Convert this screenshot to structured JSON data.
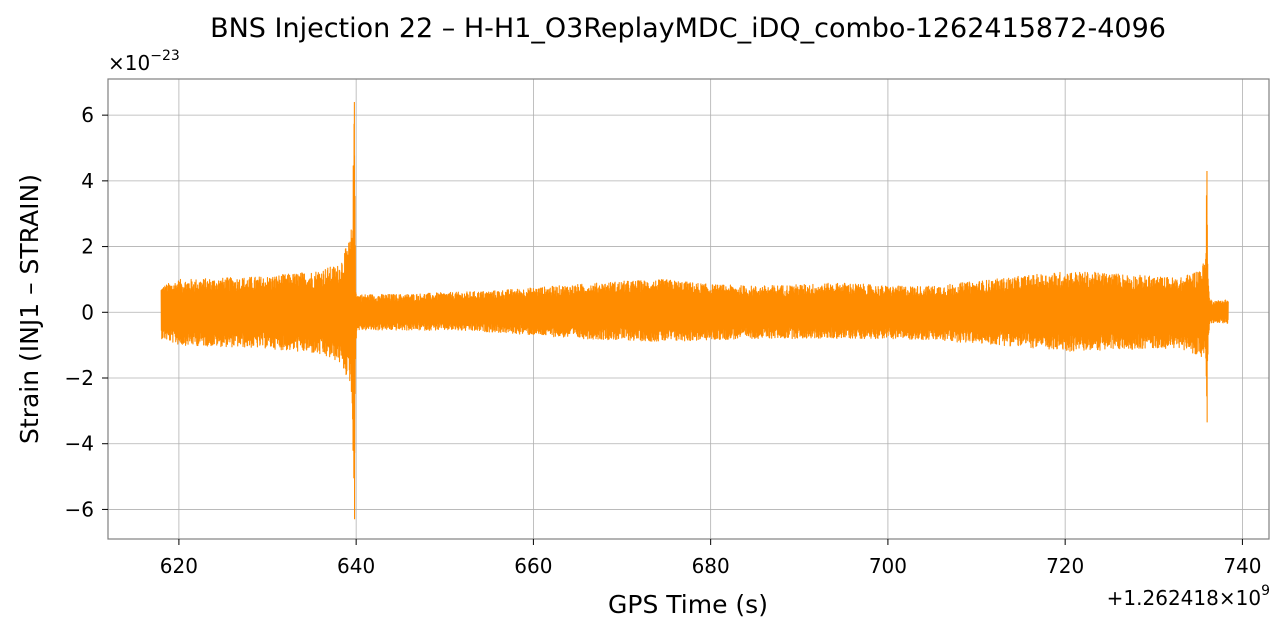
{
  "chart_data": {
    "type": "line",
    "title": "BNS Injection 22 – H-H1_O3ReplayMDC_iDQ_combo-1262415872-4096",
    "xlabel": "GPS Time (s)",
    "ylabel": "Strain (INJ1 – STRAIN)",
    "x_offset_label": "+1.262418×10",
    "x_offset_exp": "9",
    "y_scale_label": "×10",
    "y_scale_exp": "−23",
    "xlim": [
      612,
      743
    ],
    "ylim": [
      -6.9,
      7.1
    ],
    "x_ticks": [
      620,
      640,
      660,
      680,
      700,
      720,
      740
    ],
    "y_ticks": [
      -6,
      -4,
      -2,
      0,
      2,
      4,
      6
    ],
    "x_tick_labels": [
      "620",
      "640",
      "660",
      "680",
      "700",
      "720",
      "740"
    ],
    "y_tick_labels": [
      "−6",
      "−4",
      "−2",
      "0",
      "2",
      "4",
      "6"
    ],
    "grid": true,
    "series": [
      {
        "color": "#ff8c00",
        "x_range": [
          618.0,
          738.4
        ],
        "envelope": {
          "x": [
            618.0,
            620,
            625,
            630,
            635,
            638,
            639.4,
            639.6,
            639.8,
            639.95,
            640.1,
            645,
            650,
            655,
            660,
            665,
            670,
            675,
            680,
            685,
            690,
            695,
            700,
            705,
            710,
            715,
            720,
            725,
            730,
            733,
            735,
            735.8,
            736.0,
            736.15,
            736.3,
            737,
            738.4
          ],
          "upper": [
            0.8,
            1.0,
            1.05,
            1.1,
            1.25,
            1.45,
            2.3,
            3.5,
            6.4,
            1.0,
            0.55,
            0.55,
            0.6,
            0.65,
            0.75,
            0.85,
            0.95,
            1.0,
            0.85,
            0.8,
            0.85,
            0.9,
            0.8,
            0.8,
            0.95,
            1.1,
            1.25,
            1.2,
            1.1,
            1.05,
            1.3,
            1.6,
            4.3,
            1.0,
            0.4,
            0.35,
            0.4
          ],
          "lower": [
            -0.8,
            -1.0,
            -1.05,
            -1.1,
            -1.25,
            -1.5,
            -2.2,
            -3.6,
            -6.3,
            -1.0,
            -0.55,
            -0.55,
            -0.55,
            -0.6,
            -0.7,
            -0.8,
            -0.85,
            -0.9,
            -0.85,
            -0.8,
            -0.8,
            -0.8,
            -0.8,
            -0.85,
            -0.95,
            -1.05,
            -1.2,
            -1.15,
            -1.1,
            -1.1,
            -1.3,
            -1.5,
            -3.35,
            -1.0,
            -0.35,
            -0.3,
            -0.35
          ]
        }
      }
    ]
  }
}
